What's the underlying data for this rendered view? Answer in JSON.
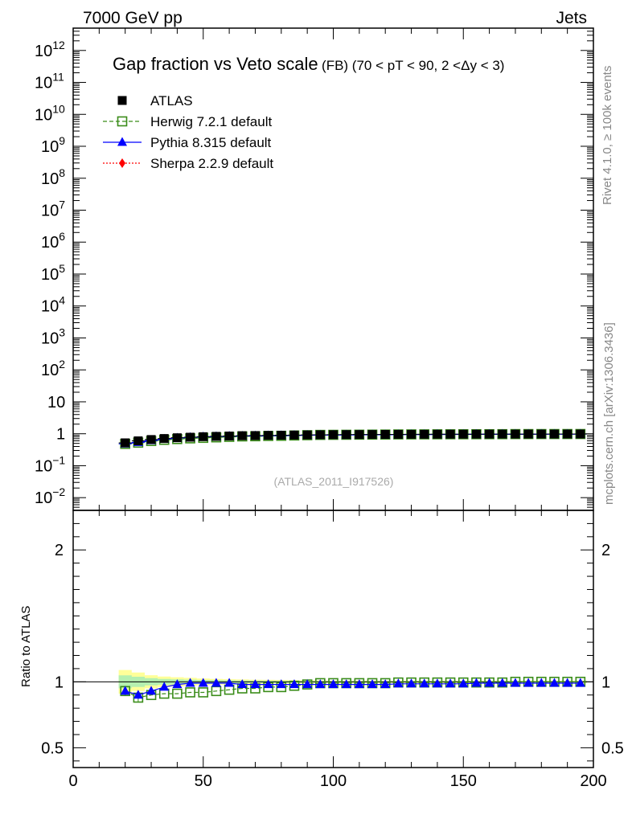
{
  "header": {
    "left": "7000 GeV pp",
    "right": "Jets"
  },
  "side_labels": {
    "rivet": "Rivet 4.1.0, ≥ 100k events",
    "mcplots": "mcplots.cern.ch [arXiv:1306.3436]"
  },
  "chart_data": {
    "type": "scatter",
    "title": "Gap fraction vs Veto scale",
    "title_suffix": "(FB) (70 < pT <  90, 2 <Δy < 3)",
    "watermark": "(ATLAS_2011_I917526)",
    "xlabel": "",
    "ylabel": "",
    "ratio_ylabel": "Ratio to ATLAS",
    "xlim": [
      0,
      200
    ],
    "ylim_log": [
      0.004,
      5000000000000.0
    ],
    "ratio_ylim": [
      0.35,
      2.3
    ],
    "x_ticks": [
      "0",
      "50",
      "100",
      "150",
      "200"
    ],
    "y_ticks": [
      {
        "base": "10",
        "exp": "−2",
        "value": 0.01
      },
      {
        "base": "10",
        "exp": "−1",
        "value": 0.1
      },
      {
        "base": "1",
        "exp": "",
        "value": 1
      },
      {
        "base": "10",
        "exp": "",
        "value": 10
      },
      {
        "base": "10",
        "exp": "2",
        "value": 100
      },
      {
        "base": "10",
        "exp": "3",
        "value": 1000
      },
      {
        "base": "10",
        "exp": "4",
        "value": 10000
      },
      {
        "base": "10",
        "exp": "5",
        "value": 100000
      },
      {
        "base": "10",
        "exp": "6",
        "value": 1000000
      },
      {
        "base": "10",
        "exp": "7",
        "value": 10000000
      },
      {
        "base": "10",
        "exp": "8",
        "value": 100000000
      },
      {
        "base": "10",
        "exp": "9",
        "value": 1000000000
      },
      {
        "base": "10",
        "exp": "10",
        "value": 10000000000
      },
      {
        "base": "10",
        "exp": "11",
        "value": 100000000000
      },
      {
        "base": "10",
        "exp": "12",
        "value": 1000000000000
      }
    ],
    "ratio_ticks": [
      {
        "label": "0.5",
        "value": 0.5
      },
      {
        "label": "1",
        "value": 1
      },
      {
        "label": "2",
        "value": 2
      }
    ],
    "x": [
      20,
      25,
      30,
      35,
      40,
      45,
      50,
      55,
      60,
      65,
      70,
      75,
      80,
      85,
      90,
      95,
      100,
      105,
      110,
      115,
      120,
      125,
      130,
      135,
      140,
      145,
      150,
      155,
      160,
      165,
      170,
      175,
      180,
      185,
      190,
      195
    ],
    "series": [
      {
        "name": "ATLAS",
        "color": "#000000",
        "marker": "square-filled",
        "line": "none",
        "values": [
          0.52,
          0.6,
          0.66,
          0.71,
          0.75,
          0.78,
          0.81,
          0.83,
          0.85,
          0.87,
          0.88,
          0.89,
          0.9,
          0.91,
          0.92,
          0.93,
          0.935,
          0.94,
          0.945,
          0.95,
          0.955,
          0.958,
          0.96,
          0.963,
          0.966,
          0.968,
          0.97,
          0.972,
          0.974,
          0.976,
          0.977,
          0.978,
          0.979,
          0.98,
          0.981,
          0.982
        ],
        "band": [
          0.09,
          0.07,
          0.05,
          0.04,
          0.035,
          0.03,
          0.025,
          0.022,
          0.02,
          0.018,
          0.016,
          0.015,
          0.014,
          0.013,
          0.012,
          0.011,
          0.01,
          0.01,
          0.01,
          0.01,
          0.01,
          0.01,
          0.01,
          0.01,
          0.01,
          0.01,
          0.01,
          0.01,
          0.01,
          0.01,
          0.01,
          0.01,
          0.01,
          0.01,
          0.01,
          0.01
        ]
      },
      {
        "name": "Herwig 7.2.1 default",
        "color": "#3a8c19",
        "marker": "square-open",
        "line": "dashed",
        "ratio": [
          0.93,
          0.88,
          0.9,
          0.91,
          0.91,
          0.92,
          0.92,
          0.93,
          0.94,
          0.95,
          0.95,
          0.96,
          0.96,
          0.97,
          0.98,
          0.99,
          0.99,
          0.99,
          0.99,
          0.99,
          0.99,
          0.995,
          0.995,
          0.995,
          0.995,
          0.995,
          0.995,
          0.995,
          0.995,
          0.995,
          1.0,
          1.0,
          1.0,
          1.0,
          1.0,
          1.0
        ]
      },
      {
        "name": "Pythia 8.315 default",
        "color": "#0000ff",
        "marker": "triangle-filled",
        "line": "solid",
        "ratio": [
          0.93,
          0.9,
          0.93,
          0.96,
          0.98,
          0.99,
          0.99,
          0.99,
          0.99,
          0.98,
          0.98,
          0.98,
          0.98,
          0.98,
          0.98,
          0.98,
          0.98,
          0.98,
          0.98,
          0.98,
          0.98,
          0.985,
          0.985,
          0.985,
          0.985,
          0.985,
          0.985,
          0.99,
          0.99,
          0.99,
          0.99,
          0.99,
          0.99,
          0.99,
          0.99,
          0.99
        ]
      },
      {
        "name": "Sherpa 2.2.9 default",
        "color": "#ff0000",
        "marker": "diamond-filled",
        "line": "dotted",
        "ratio": []
      }
    ]
  }
}
